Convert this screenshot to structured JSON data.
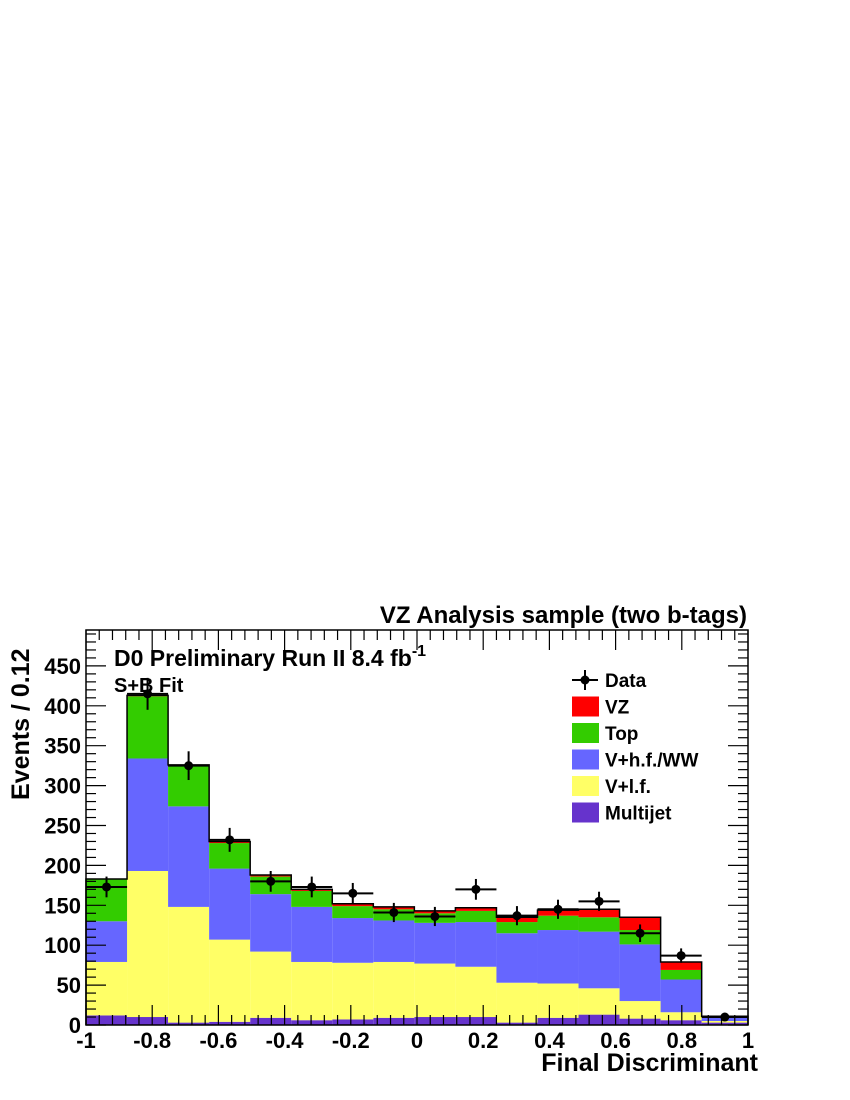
{
  "chart_data": {
    "type": "bar",
    "stacked": true,
    "title": "VZ Analysis sample (two b-tags)",
    "experiment_label": "D0 Preliminary Run II 8.4 fb",
    "experiment_label_sup": "-1",
    "fit_label": "S+B Fit",
    "xlabel": "Final Discriminant",
    "ylabel": "Events / 0.12",
    "xlim": [
      -1,
      1
    ],
    "ylim": [
      0,
      495
    ],
    "x_ticks": [
      "-1",
      "-0.8",
      "-0.6",
      "-0.4",
      "-0.2",
      "0",
      "0.2",
      "0.4",
      "0.6",
      "0.8",
      "1"
    ],
    "y_ticks": [
      "0",
      "50",
      "100",
      "150",
      "200",
      "250",
      "300",
      "350",
      "400",
      "450"
    ],
    "bin_edges": [
      -1.0,
      -0.876,
      -0.752,
      -0.628,
      -0.504,
      -0.38,
      -0.256,
      -0.132,
      -0.008,
      0.116,
      0.24,
      0.364,
      0.488,
      0.612,
      0.736,
      0.86,
      1.0
    ],
    "legend_position": "top-right",
    "series": [
      {
        "name": "Multijet",
        "color": "#6633cc",
        "values": [
          12,
          10,
          3,
          4,
          9,
          6,
          7,
          9,
          10,
          10,
          3,
          9,
          13,
          8,
          6,
          3
        ]
      },
      {
        "name": "V+l.f.",
        "color": "#ffff66",
        "values": [
          67,
          183,
          145,
          103,
          83,
          73,
          71,
          70,
          67,
          63,
          50,
          43,
          33,
          22,
          10,
          2
        ]
      },
      {
        "name": "V+h.f./WW",
        "color": "#6666ff",
        "values": [
          51,
          141,
          126,
          89,
          72,
          69,
          56,
          52,
          51,
          56,
          62,
          67,
          71,
          71,
          41,
          4
        ]
      },
      {
        "name": "Top",
        "color": "#33cc00",
        "values": [
          53,
          78,
          50,
          32,
          22,
          20,
          15,
          14,
          12,
          14,
          14,
          18,
          18,
          18,
          12,
          1
        ]
      },
      {
        "name": "VZ",
        "color": "#ff0000",
        "values": [
          0,
          1,
          2,
          2,
          2,
          2,
          3,
          3,
          3,
          4,
          6,
          7,
          10,
          16,
          10,
          1
        ]
      }
    ],
    "data_points": {
      "name": "Data",
      "values": [
        173,
        415,
        325,
        232,
        180,
        173,
        165,
        141,
        136,
        170,
        137,
        145,
        155,
        115,
        87,
        10
      ],
      "errors": [
        13,
        20,
        18,
        15,
        13,
        13,
        13,
        12,
        12,
        13,
        12,
        12,
        12,
        11,
        9,
        3
      ]
    }
  }
}
